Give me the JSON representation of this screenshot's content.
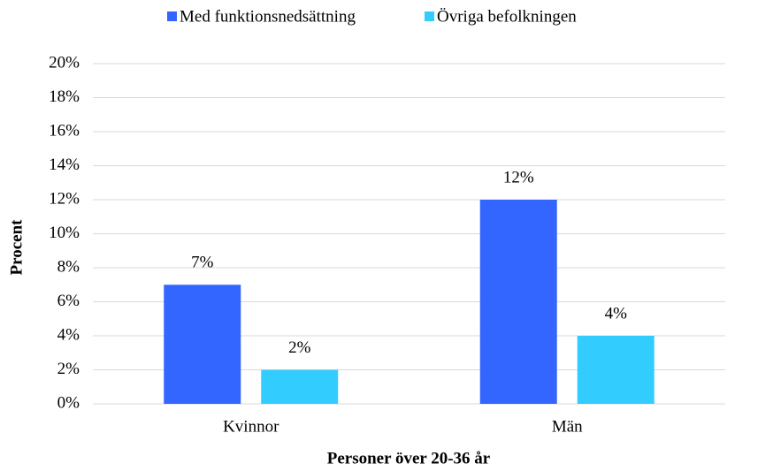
{
  "chart_data": {
    "type": "bar",
    "x_label": "Personer över 20-36 år",
    "y_label": "Procent",
    "categories": [
      "Kvinnor",
      "Män"
    ],
    "series": [
      {
        "name": "Med funktionsnedsättning",
        "color": "#3366ff",
        "values": [
          7,
          12
        ],
        "value_labels": [
          "7%",
          "12%"
        ]
      },
      {
        "name": "Övriga befolkningen",
        "color": "#33ccff",
        "values": [
          2,
          4
        ],
        "value_labels": [
          "2%",
          "4%"
        ]
      }
    ],
    "ylim": [
      0,
      20
    ],
    "yticks": [
      {
        "value": 0,
        "label": "0%"
      },
      {
        "value": 2,
        "label": "2%"
      },
      {
        "value": 4,
        "label": "4%"
      },
      {
        "value": 6,
        "label": "6%"
      },
      {
        "value": 8,
        "label": "8%"
      },
      {
        "value": 10,
        "label": "10%"
      },
      {
        "value": 12,
        "label": "12%"
      },
      {
        "value": 14,
        "label": "14%"
      },
      {
        "value": 16,
        "label": "16%"
      },
      {
        "value": 18,
        "label": "18%"
      },
      {
        "value": 20,
        "label": "20%"
      }
    ],
    "grid": true,
    "legend": "top"
  }
}
